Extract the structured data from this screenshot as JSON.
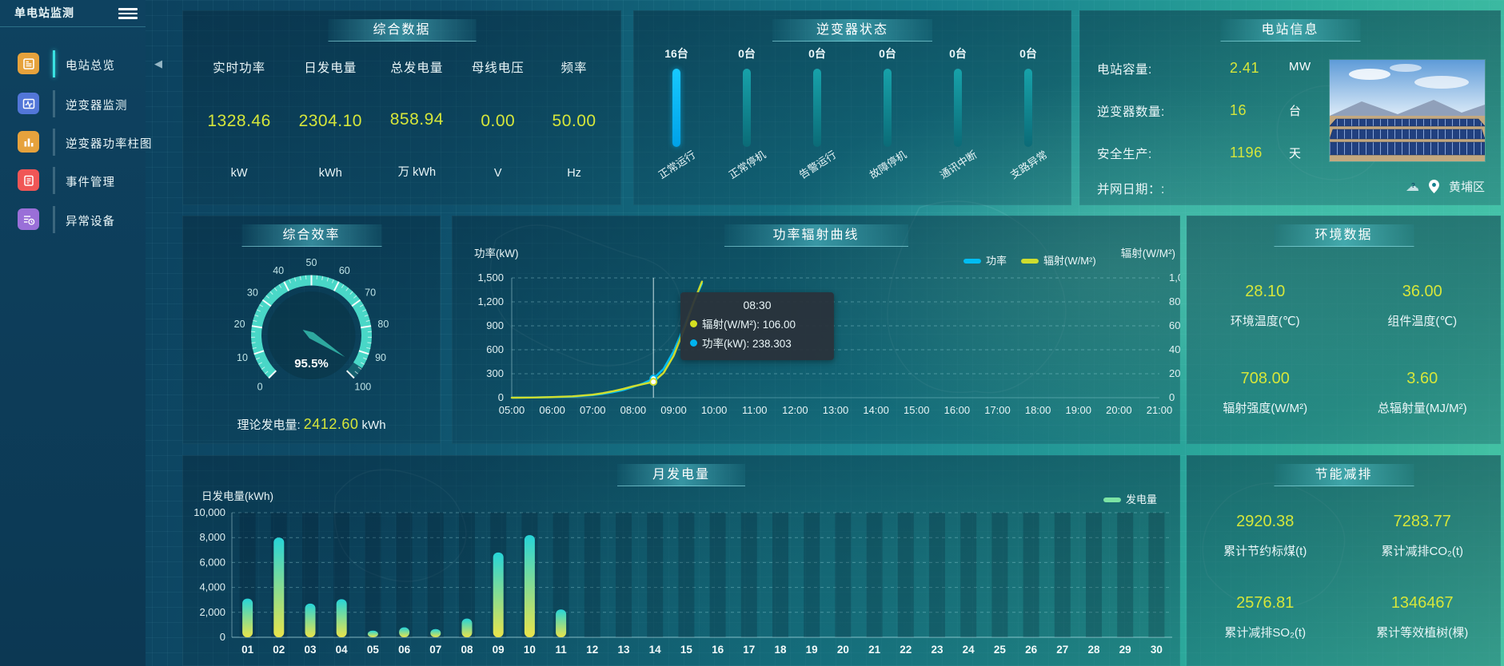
{
  "app": {
    "title": "单电站监测",
    "location": "黄埔区",
    "accent_yellow": "#d6e63a",
    "accent_blue": "#00b4f0"
  },
  "sidebar": {
    "items": [
      {
        "label": "电站总览",
        "icon": "overview-icon",
        "color": "#e6a23c",
        "active": true
      },
      {
        "label": "逆变器监测",
        "icon": "inverter-monitor-icon",
        "color": "#5276d8",
        "active": false
      },
      {
        "label": "逆变器功率柱图",
        "icon": "inverter-power-bar-icon",
        "color": "#e6a23c",
        "active": false
      },
      {
        "label": "事件管理",
        "icon": "event-management-icon",
        "color": "#f05656",
        "active": false
      },
      {
        "label": "异常设备",
        "icon": "abnormal-device-icon",
        "color": "#9a6fd8",
        "active": false
      }
    ]
  },
  "panels": {
    "summary": {
      "title": "综合数据",
      "stats": [
        {
          "label": "实时功率",
          "value": "1328.46",
          "unit": "kW"
        },
        {
          "label": "日发电量",
          "value": "2304.10",
          "unit": "kWh"
        },
        {
          "label": "总发电量",
          "value": "858.94",
          "unit": "万 kWh"
        },
        {
          "label": "母线电压",
          "value": "0.00",
          "unit": "V"
        },
        {
          "label": "频率",
          "value": "50.00",
          "unit": "Hz"
        }
      ]
    },
    "inverter_status": {
      "title": "逆变器状态",
      "bars": [
        {
          "count": "16台",
          "label": "正常运行"
        },
        {
          "count": "0台",
          "label": "正常停机"
        },
        {
          "count": "0台",
          "label": "告警运行"
        },
        {
          "count": "0台",
          "label": "故障停机"
        },
        {
          "count": "0台",
          "label": "通讯中断"
        },
        {
          "count": "0台",
          "label": "支路异常"
        }
      ]
    },
    "station_info": {
      "title": "电站信息",
      "rows": [
        {
          "label": "电站容量:",
          "value": "2.41",
          "unit": "MW"
        },
        {
          "label": "逆变器数量:",
          "value": "16",
          "unit": "台"
        },
        {
          "label": "安全生产:",
          "value": "1196",
          "unit": "天"
        }
      ],
      "grid_date_label": "并网日期：:",
      "location": "黄埔区"
    },
    "efficiency": {
      "title": "综合效率",
      "value_label": "95.5%",
      "theory_label": "理论发电量:",
      "theory_value": "2412.60",
      "theory_unit": "kWh"
    },
    "power_radiation": {
      "title": "功率辐射曲线",
      "tooltip": {
        "time": "08:30",
        "rows": [
          {
            "color": "#d5e021",
            "text": "辐射(W/M²): 106.00"
          },
          {
            "color": "#00b4f0",
            "text": "功率(kW): 238.303"
          }
        ]
      }
    },
    "environment": {
      "title": "环境数据",
      "items": [
        {
          "value": "28.10",
          "label": "环境温度(℃)"
        },
        {
          "value": "36.00",
          "label": "组件温度(℃)"
        },
        {
          "value": "708.00",
          "label": "辐射强度(W/M²)"
        },
        {
          "value": "3.60",
          "label": "总辐射量(MJ/M²)"
        }
      ]
    },
    "monthly": {
      "title": "月发电量"
    },
    "energy_saving": {
      "title": "节能减排",
      "items": [
        {
          "value": "2920.38",
          "label": "累计节约标煤(t)"
        },
        {
          "value": "7283.77",
          "label": "累计减排CO₂(t)"
        },
        {
          "value": "2576.81",
          "label": "累计减排SO₂(t)"
        },
        {
          "value": "1346467",
          "label": "累计等效植树(棵)"
        }
      ]
    }
  },
  "chart_data": [
    {
      "id": "inverter_status",
      "type": "bar",
      "title": "逆变器状态",
      "categories": [
        "正常运行",
        "正常停机",
        "告警运行",
        "故障停机",
        "通讯中断",
        "支路异常"
      ],
      "values": [
        16,
        0,
        0,
        0,
        0,
        0
      ],
      "unit": "台",
      "highlight_color": "#00b4f0",
      "base_color": "#11919b"
    },
    {
      "id": "efficiency_gauge",
      "type": "gauge",
      "title": "综合效率",
      "value": 95.5,
      "min": 0,
      "max": 100,
      "unit": "%",
      "tick_step": 10,
      "arc_color": "#49d7c7",
      "needle_color": "#2ea89f"
    },
    {
      "id": "power_radiation",
      "type": "line",
      "title": "功率辐射曲线",
      "ylabel_left": "功率(kW)",
      "ylabel_right": "辐射(W/M²)",
      "ylim_left": [
        0,
        1500
      ],
      "ytick_step_left": 300,
      "ylim_right": [
        0,
        800
      ],
      "ytick_step_right": 200,
      "x_ticks": [
        "05:00",
        "06:00",
        "07:00",
        "08:00",
        "09:00",
        "10:00",
        "11:00",
        "12:00",
        "13:00",
        "14:00",
        "15:00",
        "16:00",
        "17:00",
        "18:00",
        "19:00",
        "20:00",
        "21:00"
      ],
      "xlim": [
        5,
        21
      ],
      "hover_time": 8.5,
      "x": [
        5,
        5.5,
        6,
        6.5,
        7,
        7.25,
        7.5,
        7.75,
        8,
        8.25,
        8.5,
        8.75,
        9,
        9.25,
        9.5,
        9.7
      ],
      "series": [
        {
          "name": "功率",
          "axis": "left",
          "color": "#00bdf2",
          "values": [
            0,
            2,
            6,
            14,
            32,
            48,
            68,
            95,
            135,
            180,
            238.303,
            360,
            580,
            880,
            1200,
            1430
          ]
        },
        {
          "name": "辐射(W/M²)",
          "axis": "right",
          "color": "#cfdd2e",
          "values": [
            0,
            1,
            4,
            9,
            20,
            30,
            43,
            58,
            76,
            91,
            106,
            165,
            280,
            450,
            640,
            775
          ]
        }
      ],
      "legend_position": "top-right",
      "grid": "dashed-horizontal"
    },
    {
      "id": "monthly_generation",
      "type": "bar",
      "title": "月发电量",
      "ylabel": "日发电量(kWh)",
      "ylim": [
        0,
        10000
      ],
      "ytick_step": 2000,
      "legend": [
        "发电量"
      ],
      "legend_color": "#7ce3a4",
      "categories": [
        "01",
        "02",
        "03",
        "04",
        "05",
        "06",
        "07",
        "08",
        "09",
        "10",
        "11",
        "12",
        "13",
        "14",
        "15",
        "16",
        "17",
        "18",
        "19",
        "20",
        "21",
        "22",
        "23",
        "24",
        "25",
        "26",
        "27",
        "28",
        "29",
        "30"
      ],
      "values": [
        3100,
        8000,
        2700,
        3050,
        530,
        790,
        660,
        1500,
        6800,
        8200,
        2230,
        0,
        0,
        0,
        0,
        0,
        0,
        0,
        0,
        0,
        0,
        0,
        0,
        0,
        0,
        0,
        0,
        0,
        0,
        0
      ],
      "bar_gradient": [
        "#26d4d8",
        "#e9e44b"
      ],
      "grid": "dashed-horizontal"
    }
  ]
}
